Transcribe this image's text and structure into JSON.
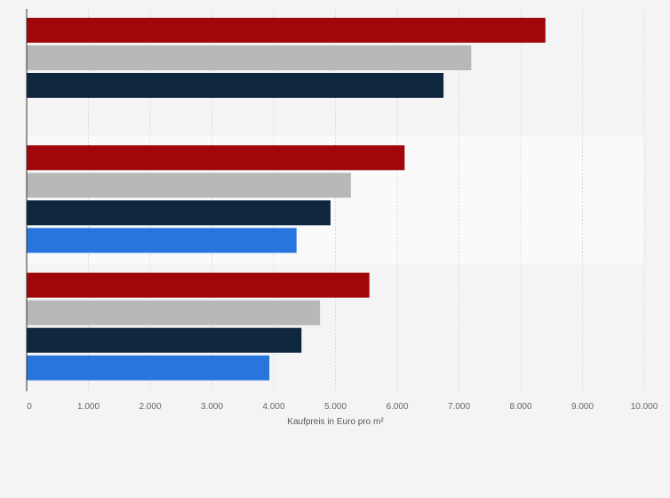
{
  "chart_data": {
    "type": "bar",
    "orientation": "horizontal",
    "title": "",
    "xlabel": "Kaufpreis in Euro pro m²",
    "ylabel": "",
    "xlim": [
      0,
      10000
    ],
    "x_ticks": [
      0,
      1000,
      2000,
      3000,
      4000,
      5000,
      6000,
      7000,
      8000,
      9000,
      10000
    ],
    "x_tick_labels": [
      "0",
      "1.000",
      "2.000",
      "3.000",
      "4.000",
      "5.000",
      "6.000",
      "7.000",
      "8.000",
      "9.000",
      "10.000"
    ],
    "grid": true,
    "legend": "none",
    "groups": [
      {
        "values": [
          8400,
          7200,
          6750
        ]
      },
      {
        "values": [
          6120,
          5250,
          4920,
          4370
        ]
      },
      {
        "values": [
          5550,
          4750,
          4450,
          3930
        ]
      }
    ],
    "series_colors": [
      "#a1070a",
      "#b8b8b8",
      "#0f263f",
      "#2876dd"
    ],
    "band_colors": [
      "#f4f4f4",
      "#fafafa",
      "#f4f4f4"
    ],
    "gridline_color": "#d9d9d9",
    "axis_color": "#333333"
  }
}
